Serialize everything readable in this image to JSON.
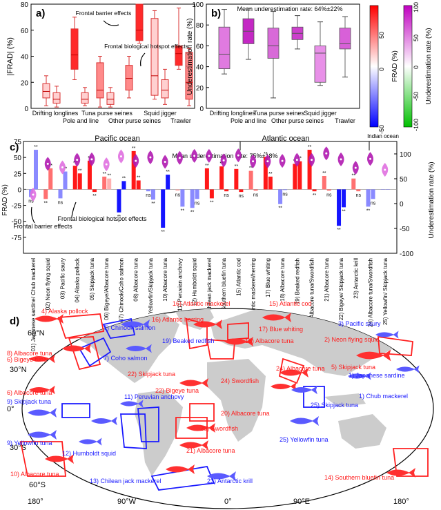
{
  "colors": {
    "red": "#ff2020",
    "light_red": "#ff9a9a",
    "pale_red": "#ffd6d6",
    "magenta": "#c21fc2",
    "light_magenta": "#e58ae5",
    "blue": "#1a1aff",
    "light_blue": "#9a9aff",
    "land": "#cccccc"
  },
  "panel_a": {
    "letter": "a)",
    "ylabel": "|FRAD| (%)",
    "groups": [
      "Drifting longlines",
      "Pole and line",
      "Tuna purse seines",
      "Other purse seines",
      "Squid jigger",
      "Trawler"
    ],
    "annotations": [
      "Frontal barrier effects",
      "Frontal biological hotspot effects"
    ]
  },
  "panel_b": {
    "letter": "b)",
    "ylabel": "Underestimation rate (%)",
    "title": "Mean underestimation rate: 64%±22%",
    "groups": [
      "Drifting longlines",
      "Pole and line",
      "Tuna purse seines",
      "Other purse seines",
      "Squid jigger",
      "Trawler"
    ],
    "cb1_label": "FRAD (%)",
    "cb1_ticks": [
      "50",
      "0",
      "-50"
    ],
    "cb2_label": "Underestimation rate (%)",
    "cb2_ticks": [
      "100",
      "50",
      "0",
      "-50",
      "-100"
    ]
  },
  "panel_c": {
    "letter": "c)",
    "title": "Mean underestimation rate: 75%±18%",
    "oceans": [
      "Pacific ocean",
      "Atlantic ocean",
      "Indian ocean"
    ],
    "ylabel_left": "FRAD (%)",
    "ylabel_right": "Underestimation rate (%)",
    "annotations": [
      "Frontal barrier effects",
      "Frontal biological hotspot effects"
    ],
    "labels": [
      "01) Japanese sardine/ Chub mackerel",
      "02) Neon flying squid",
      "03) Pacific saury",
      "04) Alaska pollock",
      "05) Skipjack tuna",
      "06) Bigeye/Albacore tuna",
      "07) Chinook/Coho salmon",
      "08) Albacore tuna",
      "09) Yellowfin/Skipjack tuna",
      "10) Albacore tuna",
      "11) Peruvian anchovy",
      "12) Humboldt squid",
      "13) Chilean jack mackerel",
      "14) Southern bluefin tuna",
      "15) Atlantic cod",
      "16) Atlantic mackerel/herring",
      "17) Blue whiting",
      "18) Albacore tuna",
      "19) Beaked redfish",
      "20) Albacore tuna/Swordfish",
      "21) Albacore tuna",
      "22) Bigeye/ Skipjack tuna",
      "23) Antarctic krill",
      "24) Albacore tuna/Swordfish",
      "25) Yellowfin/ Skipjack tuna"
    ]
  },
  "panel_d": {
    "letter": "d)",
    "lat_labels": [
      "60°N",
      "30°N",
      "0°",
      "30°S",
      "60°S"
    ],
    "lon_labels": [
      "180°",
      "90°W",
      "0°",
      "90°E",
      "180°"
    ],
    "fisheries": [
      {
        "label": "4) Alaska pollock",
        "c": "r"
      },
      {
        "label": "16) Atlantic mackerel",
        "c": "r"
      },
      {
        "label": "15) Atlantic cod",
        "c": "r"
      },
      {
        "label": "7) Chinook salmon",
        "c": "b"
      },
      {
        "label": "16) Atlantic herring",
        "c": "r"
      },
      {
        "label": "17) Blue whiting",
        "c": "r"
      },
      {
        "label": "3) Pacific saury",
        "c": "b"
      },
      {
        "label": "19) Beaked redfish",
        "c": "b"
      },
      {
        "label": "18) Albacore tuna",
        "c": "r"
      },
      {
        "label": "2) Neon flying squid",
        "c": "r"
      },
      {
        "label": "8) Albacore tuna",
        "c": "r"
      },
      {
        "label": "6) Bigeye tuna",
        "c": "r"
      },
      {
        "label": "7) Coho salmon",
        "c": "b"
      },
      {
        "label": "5) Skipjack tuna",
        "c": "r"
      },
      {
        "label": "22) Skipjack tuna",
        "c": "r"
      },
      {
        "label": "24) Albacore tuna",
        "c": "r"
      },
      {
        "label": "1) Japanese sardine",
        "c": "b"
      },
      {
        "label": "24) Swordfish",
        "c": "r"
      },
      {
        "label": "22) Bigeye tuna",
        "c": "r"
      },
      {
        "label": "6) Albacore tuna",
        "c": "r"
      },
      {
        "label": "1) Chub mackerel",
        "c": "b"
      },
      {
        "label": "11) Peruvian anchovy",
        "c": "b"
      },
      {
        "label": "9) Skipjack tuna",
        "c": "b"
      },
      {
        "label": "25) Skipjack tuna",
        "c": "b"
      },
      {
        "label": "20) Albacore tuna",
        "c": "r"
      },
      {
        "label": "9) Yellowfin tuna",
        "c": "b"
      },
      {
        "label": "25) Yellowfin tuna",
        "c": "b"
      },
      {
        "label": "20) Swordfish",
        "c": "r"
      },
      {
        "label": "12) Humboldt squid",
        "c": "b"
      },
      {
        "label": "10) Albacore tuna",
        "c": "r"
      },
      {
        "label": "21) Albacore tuna",
        "c": "r"
      },
      {
        "label": "14) Southern bluefin tuna",
        "c": "r"
      },
      {
        "label": "13) Chilean jack mackerel",
        "c": "b"
      },
      {
        "label": "23) Antarctic krill",
        "c": "b"
      }
    ]
  },
  "chart_data": [
    {
      "type": "box",
      "panel": "a",
      "ylim": [
        0,
        80
      ],
      "yticks": [
        0,
        20,
        40,
        60,
        80
      ],
      "series": [
        {
          "group": "Drifting longlines",
          "boxes": [
            {
              "min": 2,
              "q1": 8,
              "med": 13,
              "q3": 19,
              "max": 25,
              "c": "pale"
            },
            {
              "min": 1,
              "q1": 4,
              "med": 7,
              "q3": 12,
              "max": 17,
              "c": "pale"
            }
          ]
        },
        {
          "group": "Pole and line",
          "boxes": [
            {
              "min": 22,
              "q1": 30,
              "med": 41,
              "q3": 61,
              "max": 70,
              "c": "red"
            },
            {
              "min": 2,
              "q1": 4,
              "med": 7,
              "q3": 12,
              "max": 16,
              "c": "pale"
            }
          ]
        },
        {
          "group": "Tuna purse seines",
          "boxes": [
            {
              "min": 1,
              "q1": 8,
              "med": 14,
              "q3": 35,
              "max": 40,
              "c": "light"
            },
            {
              "min": 1,
              "q1": 3,
              "med": 7,
              "q3": 12,
              "max": 16,
              "c": "pale"
            }
          ]
        },
        {
          "group": "Other purse seines",
          "boxes": [
            {
              "min": 8,
              "q1": 14,
              "med": 23,
              "q3": 33,
              "max": 40,
              "c": "light"
            },
            {
              "min": 50,
              "q1": 52,
              "med": 60,
              "q3": 80,
              "max": 80,
              "c": "red"
            }
          ]
        },
        {
          "group": "Squid jigger",
          "boxes": [
            {
              "min": 7,
              "q1": 10,
              "med": 25,
              "q3": 69,
              "max": 75,
              "c": "pale"
            },
            {
              "min": 3,
              "q1": 8,
              "med": 14,
              "q3": 22,
              "max": 30,
              "c": "pale"
            }
          ]
        },
        {
          "group": "Trawler",
          "boxes": [
            {
              "min": 30,
              "q1": 33,
              "med": 42,
              "q3": 48,
              "max": 77,
              "c": "red"
            },
            {
              "min": 2,
              "q1": 7,
              "med": 20,
              "q3": 43,
              "max": 46,
              "c": "light"
            }
          ]
        }
      ]
    },
    {
      "type": "box",
      "panel": "b",
      "ylim": [
        0,
        100
      ],
      "yticks": [
        0,
        20,
        40,
        60,
        80,
        100
      ],
      "series": [
        {
          "group": "Drifting longlines",
          "min": 33,
          "q1": 38,
          "med": 52,
          "q3": 78,
          "max": 95
        },
        {
          "group": "Pole and line",
          "min": 47,
          "q1": 62,
          "med": 74,
          "q3": 86,
          "max": 96
        },
        {
          "group": "Tuna purse seines",
          "min": 10,
          "q1": 48,
          "med": 60,
          "q3": 77,
          "max": 93
        },
        {
          "group": "Other purse seines",
          "min": 57,
          "q1": 66,
          "med": 72,
          "q3": 78,
          "max": 89
        },
        {
          "group": "Squid jigger",
          "min": 22,
          "q1": 25,
          "med": 53,
          "q3": 60,
          "max": 83
        },
        {
          "group": "Trawler",
          "min": 30,
          "q1": 57,
          "med": 62,
          "q3": 77,
          "max": 88
        }
      ]
    },
    {
      "type": "bar",
      "panel": "c",
      "ylim": [
        -100,
        75
      ],
      "yticks": [
        -75,
        -50,
        -25,
        0,
        25,
        50,
        75
      ],
      "y2ticks": [
        -100,
        -50,
        0,
        50,
        100
      ],
      "categories": [
        "01",
        "02",
        "03",
        "04",
        "05",
        "06",
        "07",
        "08",
        "09",
        "10",
        "11",
        "12",
        "13",
        "14",
        "15",
        "16",
        "17",
        "18",
        "19",
        "20",
        "21",
        "22",
        "23",
        "24",
        "25"
      ],
      "bars": [
        {
          "v": -12,
          "c": "lb",
          "s": "ns"
        },
        {
          "v": 62,
          "c": "lb",
          "s": "**"
        },
        {
          "v": -15,
          "c": "lr",
          "s": "**"
        },
        {
          "v": 33,
          "c": "lr",
          "s": "**"
        },
        {
          "v": -14,
          "c": "lb",
          "s": "ns"
        },
        {
          "v": 28,
          "c": "lb",
          "s": "**"
        },
        {
          "v": 37,
          "c": "r",
          "s": "**"
        },
        {
          "v": 25,
          "c": "r",
          "s": "**"
        },
        {
          "v": 45,
          "c": "r",
          "s": "**"
        },
        {
          "v": -4,
          "c": "r",
          "s": "**"
        },
        {
          "v": 20,
          "c": "lr",
          "s": "**"
        },
        {
          "v": 17,
          "c": "pr",
          "s": "**"
        },
        {
          "v": -36,
          "c": "b",
          "s": "**"
        },
        {
          "v": 13,
          "c": "b",
          "s": "**"
        },
        {
          "v": 60,
          "c": "r",
          "s": "**"
        },
        {
          "v": 14,
          "c": "r",
          "s": "**"
        },
        {
          "v": -3,
          "c": "lb",
          "s": "ns"
        },
        {
          "v": -16,
          "c": "lb",
          "s": "**"
        },
        {
          "v": -60,
          "c": "b",
          "s": "**"
        },
        {
          "v": 23,
          "c": "b",
          "s": "**"
        },
        {
          "v": -2,
          "c": "pr",
          "s": "ns"
        },
        {
          "v": -27,
          "c": "lb",
          "s": "**"
        },
        {
          "v": -29,
          "c": "lb",
          "s": "**"
        },
        {
          "v": -15,
          "c": "lb",
          "s": "ns"
        },
        {
          "v": 33,
          "c": "r",
          "s": "**"
        },
        {
          "v": -14,
          "c": "r",
          "s": "**"
        },
        {
          "v": 36,
          "c": "r",
          "s": "**"
        },
        {
          "v": -3,
          "c": "r",
          "s": "ns"
        },
        {
          "v": 32,
          "c": "r",
          "s": "**"
        },
        {
          "v": -4,
          "c": "r",
          "s": "ns"
        },
        {
          "v": 29,
          "c": "lr",
          "s": "**"
        },
        {
          "v": -2,
          "c": "lr",
          "s": "ns"
        },
        {
          "v": 51,
          "c": "r",
          "s": "**"
        },
        {
          "v": 20,
          "c": "r",
          "s": "**"
        },
        {
          "v": -23,
          "c": "lb",
          "s": "**"
        },
        {
          "v": -1,
          "c": "lb",
          "s": "ns"
        },
        {
          "v": 40,
          "c": "r",
          "s": "**"
        },
        {
          "v": 44,
          "c": "r",
          "s": "**"
        },
        {
          "v": 62,
          "c": "r",
          "s": "**"
        },
        {
          "v": -3,
          "c": "r",
          "s": "**"
        },
        {
          "v": 21,
          "c": "lr",
          "s": "**"
        },
        {
          "v": -2,
          "c": "lr",
          "s": "ns"
        },
        {
          "v": -57,
          "c": "b",
          "s": "**"
        },
        {
          "v": -28,
          "c": "b",
          "s": "**"
        },
        {
          "v": 17,
          "c": "lr",
          "s": "**"
        },
        {
          "v": -3,
          "c": "lr",
          "s": "ns"
        },
        {
          "v": -27,
          "c": "lb",
          "s": "**"
        },
        {
          "v": -15,
          "c": "lb",
          "s": "ns"
        },
        {
          "v": 0,
          "c": "lb",
          "s": ""
        },
        {
          "v": 0,
          "c": "lb",
          "s": ""
        }
      ],
      "violins": [
        {
          "med": 18,
          "c": "lm"
        },
        {
          "med": 80,
          "c": "m"
        },
        {
          "med": 73,
          "c": "lm"
        },
        {
          "med": 88,
          "c": "m"
        },
        {
          "med": 89,
          "c": "m"
        },
        {
          "med": 79,
          "c": "lm"
        },
        {
          "med": 95,
          "c": "lm"
        },
        {
          "med": 86,
          "c": "m"
        },
        {
          "med": 93,
          "c": "m"
        },
        {
          "med": 84,
          "c": "m"
        },
        {
          "med": 92,
          "c": "m"
        },
        {
          "med": 96,
          "c": "m"
        },
        {
          "med": 96,
          "c": "m"
        },
        {
          "med": 87,
          "c": "m"
        },
        {
          "med": 97,
          "c": "m"
        },
        {
          "med": 85,
          "c": "m"
        },
        {
          "med": 85,
          "c": "m"
        },
        {
          "med": 86,
          "c": "m"
        },
        {
          "med": 88,
          "c": "m"
        },
        {
          "med": 88,
          "c": "m"
        },
        {
          "med": 101,
          "c": "m"
        },
        {
          "med": 89,
          "c": "m"
        },
        {
          "med": 72,
          "c": "m"
        },
        {
          "med": 90,
          "c": "m"
        },
        {
          "med": 68,
          "c": "lm"
        }
      ]
    }
  ]
}
